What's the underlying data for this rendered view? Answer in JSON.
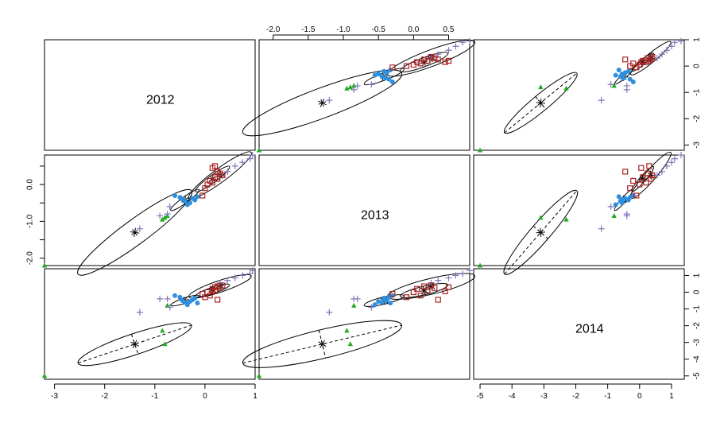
{
  "chart_data": {
    "type": "scatter",
    "plot_kind": "scatterplot-matrix",
    "variables": [
      "2012",
      "2013",
      "2014"
    ],
    "ranges": {
      "2012": [
        -3.2,
        1.0
      ],
      "2013": [
        -2.2,
        0.8
      ],
      "2014": [
        -5.2,
        1.4
      ]
    },
    "axis_ticks": {
      "2012": [
        -3,
        -2,
        -1,
        0,
        1
      ],
      "2013": [
        -2.0,
        -1.5,
        -1.0,
        -0.5,
        0.0,
        0.5
      ],
      "2014": [
        -5,
        -4,
        -3,
        -2,
        -1,
        0,
        1
      ]
    },
    "tick_labels": {
      "2012": [
        "-3",
        "-2",
        "-1",
        "0",
        "1"
      ],
      "2013_top": [
        "-2.0",
        "-1.5",
        "-1.0",
        "-0.5",
        "0.0",
        "0.5"
      ],
      "2013_left": [
        "-2.0",
        "",
        "-1.0",
        "",
        "0.0",
        ""
      ],
      "2014_right": [
        "-5",
        "-4",
        "-3",
        "-2",
        "-1",
        "0",
        "1"
      ],
      "2014_bottom": [
        "-5",
        "-4",
        "-3",
        "-2",
        "-1",
        "0",
        "1"
      ],
      "2013_right_bottom": [
        "-3",
        "-2",
        "-1",
        "0",
        "1"
      ]
    },
    "groups": [
      {
        "symbol": "triangle",
        "color": "#22aa22",
        "points": [
          {
            "2012": -3.2,
            "2013": -2.2,
            "2014": -5.0
          },
          {
            "2012": -0.85,
            "2013": -0.95,
            "2014": -2.3
          },
          {
            "2012": -0.8,
            "2013": -0.9,
            "2014": -3.1
          },
          {
            "2012": -0.75,
            "2013": -0.85,
            "2014": -0.8
          }
        ]
      },
      {
        "symbol": "plus",
        "color": "#7f77bb",
        "points": [
          {
            "2012": -1.3,
            "2013": -1.2,
            "2014": -1.2
          },
          {
            "2012": -0.9,
            "2013": -0.85,
            "2014": -0.4
          },
          {
            "2012": -0.75,
            "2013": -0.8,
            "2014": -0.4
          },
          {
            "2012": -0.7,
            "2013": -0.6,
            "2014": -0.9
          },
          {
            "2012": 0.3,
            "2013": 0.25,
            "2014": 0.55
          },
          {
            "2012": 0.45,
            "2013": 0.35,
            "2014": 0.7
          },
          {
            "2012": 0.6,
            "2013": 0.5,
            "2014": 0.85
          },
          {
            "2012": 0.75,
            "2013": 0.6,
            "2014": 1.0
          },
          {
            "2012": 0.9,
            "2013": 0.7,
            "2014": 1.1
          },
          {
            "2012": 0.95,
            "2013": 0.8,
            "2014": 1.3
          }
        ]
      },
      {
        "symbol": "circle",
        "color": "#2f8fdf",
        "points": [
          {
            "2012": -0.6,
            "2013": -0.3,
            "2014": -0.2
          },
          {
            "2012": -0.5,
            "2013": -0.35,
            "2014": -0.3
          },
          {
            "2012": -0.45,
            "2013": -0.4,
            "2014": -0.5
          },
          {
            "2012": -0.4,
            "2013": -0.45,
            "2014": -0.6
          },
          {
            "2012": -0.35,
            "2013": -0.55,
            "2014": -0.75
          },
          {
            "2012": -0.3,
            "2013": -0.5,
            "2014": -0.55
          },
          {
            "2012": -0.25,
            "2013": -0.38,
            "2014": -0.45
          },
          {
            "2012": -0.2,
            "2013": -0.42,
            "2014": -0.35
          },
          {
            "2012": -0.15,
            "2013": -0.33,
            "2014": -0.65
          }
        ]
      },
      {
        "symbol": "square",
        "color": "#aa2222",
        "points": [
          {
            "2012": -0.05,
            "2013": -0.3,
            "2014": -0.1
          },
          {
            "2012": 0.0,
            "2013": -0.1,
            "2014": -0.3
          },
          {
            "2012": 0.05,
            "2013": 0.0,
            "2014": 0.0
          },
          {
            "2012": 0.1,
            "2013": 0.1,
            "2014": -0.2
          },
          {
            "2012": 0.15,
            "2013": 0.05,
            "2014": 0.2
          },
          {
            "2012": 0.2,
            "2013": 0.2,
            "2014": 0.1
          },
          {
            "2012": 0.25,
            "2013": 0.15,
            "2014": 0.35
          },
          {
            "2012": 0.3,
            "2013": 0.3,
            "2014": 0.25
          },
          {
            "2012": 0.35,
            "2013": 0.25,
            "2014": 0.4
          },
          {
            "2012": 0.15,
            "2013": 0.45,
            "2014": 0.05
          },
          {
            "2012": 0.25,
            "2013": 0.35,
            "2014": -0.45
          },
          {
            "2012": 0.2,
            "2013": 0.5,
            "2014": 0.3
          }
        ]
      }
    ],
    "ellipses": [
      {
        "group": "triangle",
        "center": {
          "2012": -1.4,
          "2013": -1.3,
          "2014": -3.1
        },
        "scale": 1.0
      },
      {
        "group": "plus",
        "center": {
          "2012": 0.3,
          "2013": 0.25,
          "2014": 0.35
        },
        "scale": 0.55
      },
      {
        "group": "circle",
        "center": {
          "2012": -0.4,
          "2013": -0.42,
          "2014": -0.5
        },
        "scale": 0.25
      },
      {
        "group": "square",
        "center": {
          "2012": 0.15,
          "2013": 0.15,
          "2014": 0.1
        },
        "scale": 0.3
      }
    ],
    "grid": false,
    "legend": "none"
  }
}
